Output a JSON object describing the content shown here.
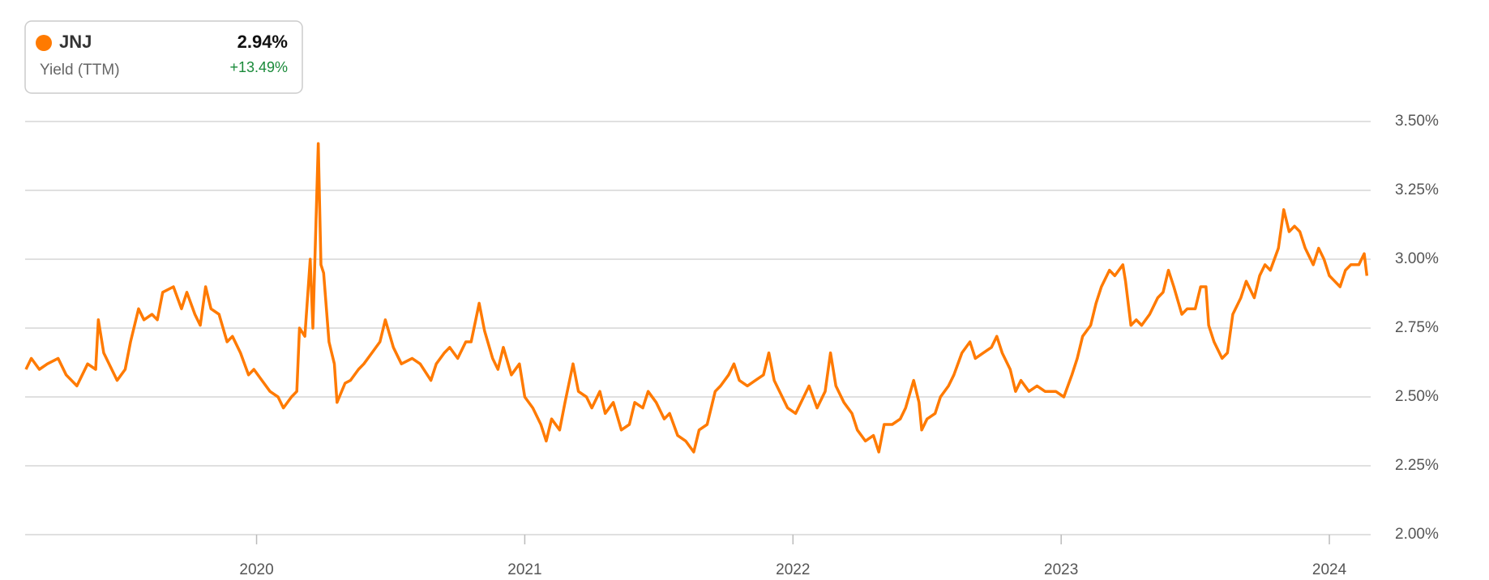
{
  "chart_data": {
    "type": "line",
    "legend": {
      "name": "JNJ",
      "value": "2.94%",
      "label": "Yield (TTM)",
      "change": "+13.49%"
    },
    "x": [
      2019.14,
      2019.16,
      2019.19,
      2019.22,
      2019.26,
      2019.29,
      2019.33,
      2019.37,
      2019.4,
      2019.41,
      2019.43,
      2019.46,
      2019.48,
      2019.51,
      2019.53,
      2019.56,
      2019.58,
      2019.61,
      2019.63,
      2019.65,
      2019.69,
      2019.72,
      2019.74,
      2019.77,
      2019.79,
      2019.81,
      2019.83,
      2019.86,
      2019.89,
      2019.91,
      2019.94,
      2019.97,
      2019.99,
      2020.02,
      2020.05,
      2020.08,
      2020.1,
      2020.13,
      2020.15,
      2020.16,
      2020.18,
      2020.2,
      2020.21,
      2020.23,
      2020.24,
      2020.25,
      2020.27,
      2020.29,
      2020.3,
      2020.33,
      2020.35,
      2020.38,
      2020.4,
      2020.43,
      2020.46,
      2020.48,
      2020.51,
      2020.54,
      2020.58,
      2020.61,
      2020.65,
      2020.67,
      2020.7,
      2020.72,
      2020.75,
      2020.78,
      2020.8,
      2020.83,
      2020.85,
      2020.88,
      2020.9,
      2020.92,
      2020.95,
      2020.98,
      2021.0,
      2021.03,
      2021.06,
      2021.08,
      2021.1,
      2021.13,
      2021.15,
      2021.18,
      2021.2,
      2021.23,
      2021.25,
      2021.28,
      2021.3,
      2021.33,
      2021.36,
      2021.39,
      2021.41,
      2021.44,
      2021.46,
      2021.49,
      2021.52,
      2021.54,
      2021.57,
      2021.6,
      2021.63,
      2021.65,
      2021.68,
      2021.71,
      2021.73,
      2021.76,
      2021.78,
      2021.8,
      2021.83,
      2021.86,
      2021.89,
      2021.91,
      2021.93,
      2021.96,
      2021.98,
      2022.01,
      2022.04,
      2022.06,
      2022.09,
      2022.12,
      2022.14,
      2022.16,
      2022.19,
      2022.22,
      2022.24,
      2022.27,
      2022.3,
      2022.32,
      2022.34,
      2022.37,
      2022.4,
      2022.42,
      2022.45,
      2022.47,
      2022.48,
      2022.5,
      2022.53,
      2022.55,
      2022.58,
      2022.6,
      2022.63,
      2022.66,
      2022.68,
      2022.71,
      2022.74,
      2022.76,
      2022.78,
      2022.81,
      2022.83,
      2022.85,
      2022.88,
      2022.91,
      2022.94,
      2022.98,
      2023.01,
      2023.04,
      2023.06,
      2023.08,
      2023.11,
      2023.13,
      2023.15,
      2023.18,
      2023.2,
      2023.23,
      2023.24,
      2023.26,
      2023.28,
      2023.3,
      2023.33,
      2023.36,
      2023.38,
      2023.4,
      2023.42,
      2023.45,
      2023.47,
      2023.5,
      2023.52,
      2023.54,
      2023.55,
      2023.57,
      2023.6,
      2023.62,
      2023.64,
      2023.67,
      2023.69,
      2023.72,
      2023.74,
      2023.76,
      2023.78,
      2023.81,
      2023.83,
      2023.85,
      2023.87,
      2023.89,
      2023.91,
      2023.94,
      2023.96,
      2023.98,
      2024.0,
      2024.02,
      2024.04,
      2024.06,
      2024.08,
      2024.11,
      2024.13,
      2024.14
    ],
    "series": [
      {
        "name": "JNJ",
        "color": "#ff7a00",
        "values": [
          2.6,
          2.64,
          2.6,
          2.62,
          2.64,
          2.58,
          2.54,
          2.62,
          2.6,
          2.78,
          2.66,
          2.6,
          2.56,
          2.6,
          2.7,
          2.82,
          2.78,
          2.8,
          2.78,
          2.88,
          2.9,
          2.82,
          2.88,
          2.8,
          2.76,
          2.9,
          2.82,
          2.8,
          2.7,
          2.72,
          2.66,
          2.58,
          2.6,
          2.56,
          2.52,
          2.5,
          2.46,
          2.5,
          2.52,
          2.75,
          2.72,
          3.0,
          2.75,
          3.42,
          2.98,
          2.95,
          2.7,
          2.62,
          2.48,
          2.55,
          2.56,
          2.6,
          2.62,
          2.66,
          2.7,
          2.78,
          2.68,
          2.62,
          2.64,
          2.62,
          2.56,
          2.62,
          2.66,
          2.68,
          2.64,
          2.7,
          2.7,
          2.84,
          2.74,
          2.64,
          2.6,
          2.68,
          2.58,
          2.62,
          2.5,
          2.46,
          2.4,
          2.34,
          2.42,
          2.38,
          2.48,
          2.62,
          2.52,
          2.5,
          2.46,
          2.52,
          2.44,
          2.48,
          2.38,
          2.4,
          2.48,
          2.46,
          2.52,
          2.48,
          2.42,
          2.44,
          2.36,
          2.34,
          2.3,
          2.38,
          2.4,
          2.52,
          2.54,
          2.58,
          2.62,
          2.56,
          2.54,
          2.56,
          2.58,
          2.66,
          2.56,
          2.5,
          2.46,
          2.44,
          2.5,
          2.54,
          2.46,
          2.52,
          2.66,
          2.54,
          2.48,
          2.44,
          2.38,
          2.34,
          2.36,
          2.3,
          2.4,
          2.4,
          2.42,
          2.46,
          2.56,
          2.48,
          2.38,
          2.42,
          2.44,
          2.5,
          2.54,
          2.58,
          2.66,
          2.7,
          2.64,
          2.66,
          2.68,
          2.72,
          2.66,
          2.6,
          2.52,
          2.56,
          2.52,
          2.54,
          2.52,
          2.52,
          2.5,
          2.58,
          2.64,
          2.72,
          2.76,
          2.84,
          2.9,
          2.96,
          2.94,
          2.98,
          2.92,
          2.76,
          2.78,
          2.76,
          2.8,
          2.86,
          2.88,
          2.96,
          2.9,
          2.8,
          2.82,
          2.82,
          2.9,
          2.9,
          2.76,
          2.7,
          2.64,
          2.66,
          2.8,
          2.86,
          2.92,
          2.86,
          2.94,
          2.98,
          2.96,
          3.04,
          3.18,
          3.1,
          3.12,
          3.1,
          3.04,
          2.98,
          3.04,
          3.0,
          2.94,
          2.92,
          2.9,
          2.96,
          2.98,
          2.98,
          3.02,
          2.94
        ]
      }
    ],
    "xlim": [
      2019.137,
      2024.154
    ],
    "xticks": [
      2020,
      2021,
      2022,
      2023,
      2024
    ],
    "ylim": [
      2.0,
      3.5
    ],
    "yticks": [
      {
        "value": 2.0,
        "label": "2.00%"
      },
      {
        "value": 2.25,
        "label": "2.25%"
      },
      {
        "value": 2.5,
        "label": "2.50%"
      },
      {
        "value": 2.75,
        "label": "2.75%"
      },
      {
        "value": 3.0,
        "label": "3.00%"
      },
      {
        "value": 3.25,
        "label": "3.25%"
      },
      {
        "value": 3.5,
        "label": "3.50%"
      }
    ],
    "grid": true
  }
}
